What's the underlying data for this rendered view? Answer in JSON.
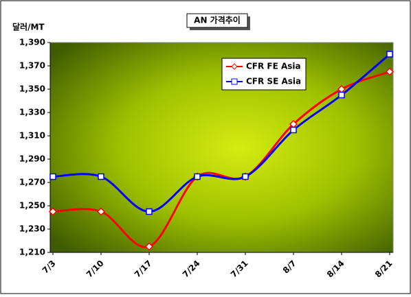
{
  "chart_data": {
    "type": "line",
    "title": "AN 가격추이",
    "y_label": "달러/MT",
    "categories": [
      "7/3",
      "7/10",
      "7/17",
      "7/24",
      "7/31",
      "8/7",
      "8/14",
      "8/21"
    ],
    "series": [
      {
        "name": "CFR FE Asia",
        "color": "#ff0000",
        "marker": "diamond",
        "values": [
          1245,
          1245,
          1215,
          1275,
          1275,
          1320,
          1350,
          1365
        ]
      },
      {
        "name": "CFR SE Asia",
        "color": "#0000ff",
        "marker": "square",
        "values": [
          1275,
          1275,
          1245,
          1275,
          1275,
          1315,
          1345,
          1380
        ]
      }
    ],
    "ylim": [
      1210,
      1390
    ],
    "yticks": [
      {
        "value": 1210,
        "label": "1,210"
      },
      {
        "value": 1230,
        "label": "1,230"
      },
      {
        "value": 1250,
        "label": "1,250"
      },
      {
        "value": 1270,
        "label": "1,270"
      },
      {
        "value": 1290,
        "label": "1,290"
      },
      {
        "value": 1310,
        "label": "1,310"
      },
      {
        "value": 1330,
        "label": "1,330"
      },
      {
        "value": 1350,
        "label": "1,350"
      },
      {
        "value": 1370,
        "label": "1,370"
      },
      {
        "value": 1390,
        "label": "1,390"
      }
    ],
    "legend": "upper-center"
  }
}
